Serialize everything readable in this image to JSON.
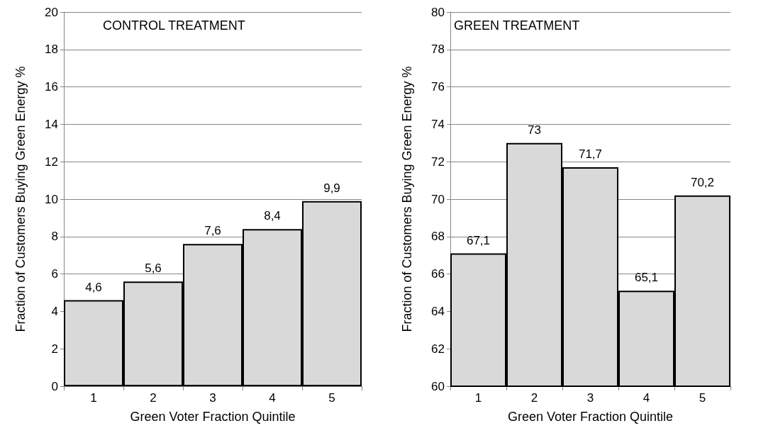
{
  "chart_data": [
    {
      "type": "bar",
      "title": "CONTROL TREATMENT",
      "xlabel": "Green Voter Fraction Quintile",
      "ylabel": "Fraction of Customers Buying Green Energy %",
      "categories": [
        "1",
        "2",
        "3",
        "4",
        "5"
      ],
      "values": [
        4.6,
        5.6,
        7.6,
        8.4,
        9.9
      ],
      "value_labels": [
        "4,6",
        "5,6",
        "7,6",
        "8,4",
        "9,9"
      ],
      "color": "#d9d9d9",
      "ylim": [
        0,
        20
      ],
      "yticks": [
        0,
        2,
        4,
        6,
        8,
        10,
        12,
        14,
        16,
        18,
        20
      ],
      "grid": "y"
    },
    {
      "type": "bar",
      "title": "GREEN TREATMENT",
      "xlabel": "Green Voter Fraction Quintile",
      "ylabel": "Fraction of Customers Buying Green Energy %",
      "categories": [
        "1",
        "2",
        "3",
        "4",
        "5"
      ],
      "values": [
        67.1,
        73,
        71.7,
        65.1,
        70.2
      ],
      "value_labels": [
        "67,1",
        "73",
        "71,7",
        "65,1",
        "70,2"
      ],
      "color": "#d9d9d9",
      "ylim": [
        60,
        80
      ],
      "yticks": [
        60,
        62,
        64,
        66,
        68,
        70,
        72,
        74,
        76,
        78,
        80
      ],
      "grid": "y"
    }
  ]
}
